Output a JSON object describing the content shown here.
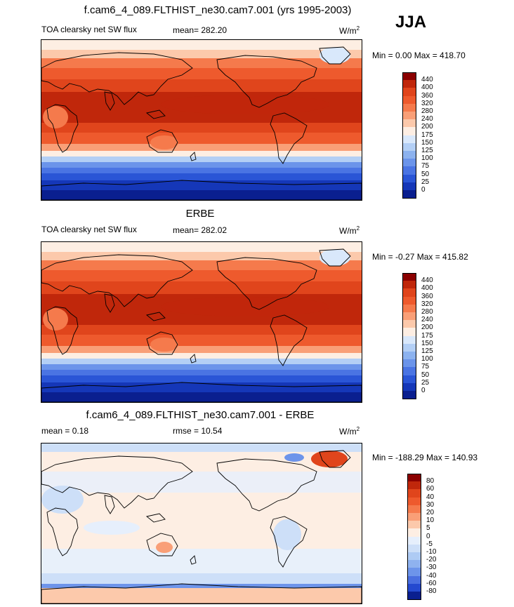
{
  "season": "JJA",
  "panels": [
    {
      "title": "f.cam6_4_089.FLTHIST_ne30.cam7.001 (yrs 1995-2003)",
      "left_label": "TOA clearsky net SW flux",
      "center_label": "mean= 282.20",
      "units": "W/m",
      "units_sup": "2",
      "minmax": "Min =   0.00 Max = 418.70",
      "colorbar": {
        "labels": [
          "440",
          "400",
          "360",
          "320",
          "280",
          "240",
          "200",
          "175",
          "150",
          "125",
          "100",
          "75",
          "50",
          "25",
          "0"
        ],
        "colors": [
          "#8b0000",
          "#c0270b",
          "#e0451c",
          "#ee5a2d",
          "#f57a4c",
          "#f99f77",
          "#fcc9ab",
          "#fdeee3",
          "#d9e8fb",
          "#b3cff5",
          "#8cb2ef",
          "#6b94ea",
          "#4a74e3",
          "#2a55d6",
          "#1537b8",
          "#0a1f8f"
        ]
      }
    },
    {
      "title": "ERBE",
      "left_label": "TOA clearsky net SW flux",
      "center_label": "mean= 282.02",
      "units": "W/m",
      "units_sup": "2",
      "minmax": "Min =  -0.27 Max = 415.82",
      "colorbar": {
        "labels": [
          "440",
          "400",
          "360",
          "320",
          "280",
          "240",
          "200",
          "175",
          "150",
          "125",
          "100",
          "75",
          "50",
          "25",
          "0"
        ],
        "colors": [
          "#8b0000",
          "#c0270b",
          "#e0451c",
          "#ee5a2d",
          "#f57a4c",
          "#f99f77",
          "#fcc9ab",
          "#fdeee3",
          "#d9e8fb",
          "#b3cff5",
          "#8cb2ef",
          "#6b94ea",
          "#4a74e3",
          "#2a55d6",
          "#1537b8",
          "#0a1f8f"
        ]
      }
    },
    {
      "title": "f.cam6_4_089.FLTHIST_ne30.cam7.001 - ERBE",
      "left_label": "mean =   0.18",
      "center_label": "rmse =  10.54",
      "units": "W/m",
      "units_sup": "2",
      "minmax": "Min = -188.29 Max = 140.93",
      "colorbar": {
        "labels": [
          "80",
          "60",
          "40",
          "30",
          "20",
          "10",
          "5",
          "0",
          "-5",
          "-10",
          "-20",
          "-30",
          "-40",
          "-60",
          "-80"
        ],
        "colors": [
          "#8b0000",
          "#c0270b",
          "#e0451c",
          "#ee5a2d",
          "#f57a4c",
          "#f99f77",
          "#fcc9ab",
          "#fdeee3",
          "#e6effc",
          "#cddff8",
          "#aecbf4",
          "#8fb2ef",
          "#6d94ea",
          "#4a6fe0",
          "#2449cf",
          "#0a1f8f"
        ]
      }
    }
  ],
  "chart_data": [
    {
      "type": "heatmap",
      "title": "f.cam6_4_089.FLTHIST_ne30.cam7.001 (yrs 1995-2003)",
      "subtitle": "TOA clearsky net SW flux",
      "mean": 282.2,
      "units": "W/m2",
      "min": 0.0,
      "max": 418.7,
      "levels": [
        0,
        25,
        50,
        75,
        100,
        125,
        150,
        175,
        200,
        240,
        280,
        320,
        360,
        400,
        440
      ]
    },
    {
      "type": "heatmap",
      "title": "ERBE",
      "subtitle": "TOA clearsky net SW flux",
      "mean": 282.02,
      "units": "W/m2",
      "min": -0.27,
      "max": 415.82,
      "levels": [
        0,
        25,
        50,
        75,
        100,
        125,
        150,
        175,
        200,
        240,
        280,
        320,
        360,
        400,
        440
      ]
    },
    {
      "type": "heatmap",
      "title": "f.cam6_4_089.FLTHIST_ne30.cam7.001 - ERBE",
      "mean": 0.18,
      "rmse": 10.54,
      "units": "W/m2",
      "min": -188.29,
      "max": 140.93,
      "levels": [
        -80,
        -60,
        -40,
        -30,
        -20,
        -10,
        -5,
        0,
        5,
        10,
        20,
        30,
        40,
        60,
        80
      ]
    }
  ]
}
